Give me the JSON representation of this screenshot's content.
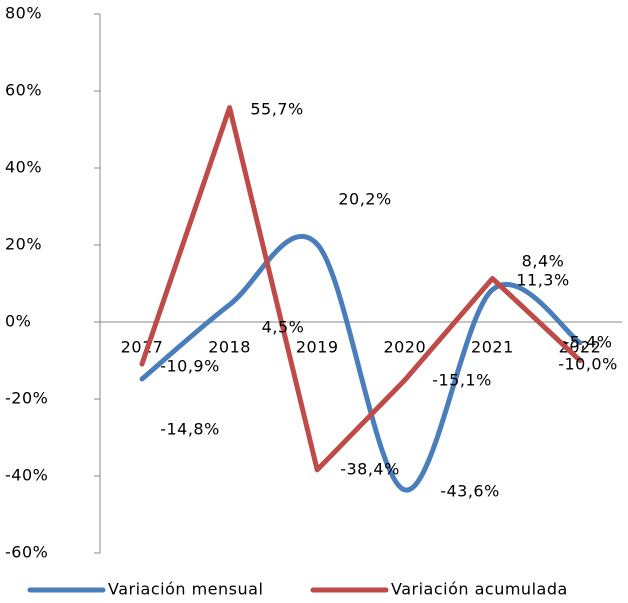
{
  "chart_data": {
    "type": "line",
    "categories": [
      "2017",
      "2018",
      "2019",
      "2020",
      "2021",
      "2022"
    ],
    "series": [
      {
        "name": "Variación mensual",
        "color": "#4a7ebb",
        "smooth": true,
        "values": [
          -14.8,
          4.5,
          20.2,
          -43.6,
          8.4,
          -5.4
        ],
        "value_labels": [
          "-14,8%",
          "4,5%",
          "20,2%",
          "-43,6%",
          "8,4%",
          "-5,4%"
        ]
      },
      {
        "name": "Variación acumulada",
        "color": "#be4b48",
        "smooth": false,
        "values": [
          -10.9,
          55.7,
          -38.4,
          -15.1,
          11.3,
          -10.0
        ],
        "value_labels": [
          "-10,9%",
          "55,7%",
          "-38,4%",
          "-15,1%",
          "11,3%",
          "-10,0%"
        ]
      }
    ],
    "ylim": [
      -60,
      80
    ],
    "yticks": [
      {
        "value": -60,
        "label": "-60%"
      },
      {
        "value": -40,
        "label": "-40%"
      },
      {
        "value": -20,
        "label": "-20%"
      },
      {
        "value": 0,
        "label": "0%"
      },
      {
        "value": 20,
        "label": "20%"
      },
      {
        "value": 40,
        "label": "40%"
      },
      {
        "value": 60,
        "label": "60%"
      },
      {
        "value": 80,
        "label": "80%"
      }
    ],
    "legend": "bottom"
  }
}
